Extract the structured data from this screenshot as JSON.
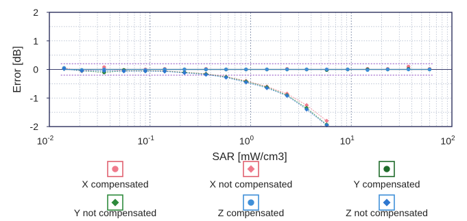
{
  "chart_data": {
    "type": "scatter",
    "xlabel": "SAR [mW/cm3]",
    "ylabel": "Error [dB]",
    "xscale": "log",
    "xlim": [
      0.01,
      100
    ],
    "ylim": [
      -2,
      2
    ],
    "grid": true,
    "legend_position": "bottom",
    "x_ticks": [
      {
        "base": "10",
        "exp": "-2",
        "value": 0.01
      },
      {
        "base": "10",
        "exp": "-1",
        "value": 0.1
      },
      {
        "base": "10",
        "exp": "0",
        "value": 1
      },
      {
        "base": "10",
        "exp": "1",
        "value": 10
      },
      {
        "base": "10",
        "exp": "2",
        "value": 100
      }
    ],
    "y_ticks": [
      "2",
      "1",
      "0",
      "-1",
      "-2"
    ],
    "tolerance_band_db": 0.2,
    "series": [
      {
        "name": "X compensated",
        "marker": "circle",
        "color": "#f07a8c",
        "box_color": "#e06070",
        "fit": "flat",
        "x": [
          0.014,
          0.021,
          0.035,
          0.055,
          0.09,
          0.14,
          0.22,
          0.36,
          0.57,
          0.9,
          1.45,
          2.3,
          3.6,
          5.7,
          9.2,
          14.5,
          23,
          37,
          60
        ],
        "y": [
          0.05,
          -0.05,
          0.08,
          -0.02,
          0.0,
          0.02,
          0.0,
          0.02,
          0.0,
          0.0,
          0.0,
          0.02,
          0.0,
          0.0,
          0.0,
          0.02,
          0.02,
          0.1,
          0.02
        ]
      },
      {
        "name": "X not compensated",
        "marker": "diamond",
        "color": "#f07a8c",
        "box_color": "#e06070",
        "fit": "curve",
        "x": [
          0.014,
          0.021,
          0.035,
          0.055,
          0.09,
          0.14,
          0.22,
          0.36,
          0.57,
          0.9,
          1.45,
          2.3,
          3.6,
          5.7
        ],
        "y": [
          0.05,
          -0.05,
          0.02,
          -0.05,
          -0.05,
          -0.05,
          -0.1,
          -0.15,
          -0.25,
          -0.4,
          -0.6,
          -0.85,
          -1.25,
          -1.8
        ]
      },
      {
        "name": "Y compensated",
        "marker": "circle",
        "color": "#1e6b2a",
        "box_color": "#1e6b2a",
        "fit": "flat",
        "x": [
          0.014,
          0.021,
          0.035,
          0.055,
          0.09,
          0.14,
          0.22,
          0.36,
          0.57,
          0.9,
          1.45,
          2.3,
          3.6,
          5.7,
          9.2,
          14.5,
          23,
          37,
          60
        ],
        "y": [
          0.05,
          -0.02,
          -0.1,
          -0.02,
          -0.05,
          0.0,
          0.0,
          0.0,
          0.0,
          0.0,
          0.0,
          0.0,
          0.0,
          -0.02,
          0.0,
          0.0,
          0.0,
          0.02,
          0.0
        ]
      },
      {
        "name": "Y not compensated",
        "marker": "diamond",
        "color": "#2e8a3c",
        "box_color": "#2e8a3c",
        "fit": "curve",
        "x": [
          0.014,
          0.021,
          0.035,
          0.055,
          0.09,
          0.14,
          0.22,
          0.36,
          0.57,
          0.9,
          1.45,
          2.3,
          3.6,
          5.7
        ],
        "y": [
          0.02,
          -0.05,
          -0.1,
          -0.05,
          -0.05,
          -0.06,
          -0.1,
          -0.16,
          -0.26,
          -0.42,
          -0.62,
          -0.9,
          -1.35,
          -1.93
        ]
      },
      {
        "name": "Z compensated",
        "marker": "circle",
        "color": "#3f8fd8",
        "box_color": "#3f8fd8",
        "fit": "flat",
        "x": [
          0.014,
          0.021,
          0.035,
          0.055,
          0.09,
          0.14,
          0.22,
          0.36,
          0.57,
          0.9,
          1.45,
          2.3,
          3.6,
          5.7,
          9.2,
          14.5,
          23,
          37,
          60
        ],
        "y": [
          0.05,
          -0.02,
          0.0,
          -0.05,
          -0.02,
          0.0,
          0.0,
          0.0,
          0.0,
          0.0,
          0.0,
          0.0,
          0.0,
          0.0,
          0.0,
          -0.02,
          0.0,
          0.0,
          0.0
        ]
      },
      {
        "name": "Z not compensated",
        "marker": "diamond",
        "color": "#2f78d0",
        "box_color": "#3f8fd8",
        "fit": "curve",
        "x": [
          0.014,
          0.021,
          0.035,
          0.055,
          0.09,
          0.14,
          0.22,
          0.36,
          0.57,
          0.9,
          1.45,
          2.3,
          3.6,
          5.7
        ],
        "y": [
          0.02,
          -0.05,
          -0.05,
          -0.06,
          -0.06,
          -0.07,
          -0.12,
          -0.18,
          -0.28,
          -0.45,
          -0.65,
          -0.92,
          -1.4,
          -1.95
        ]
      }
    ]
  }
}
